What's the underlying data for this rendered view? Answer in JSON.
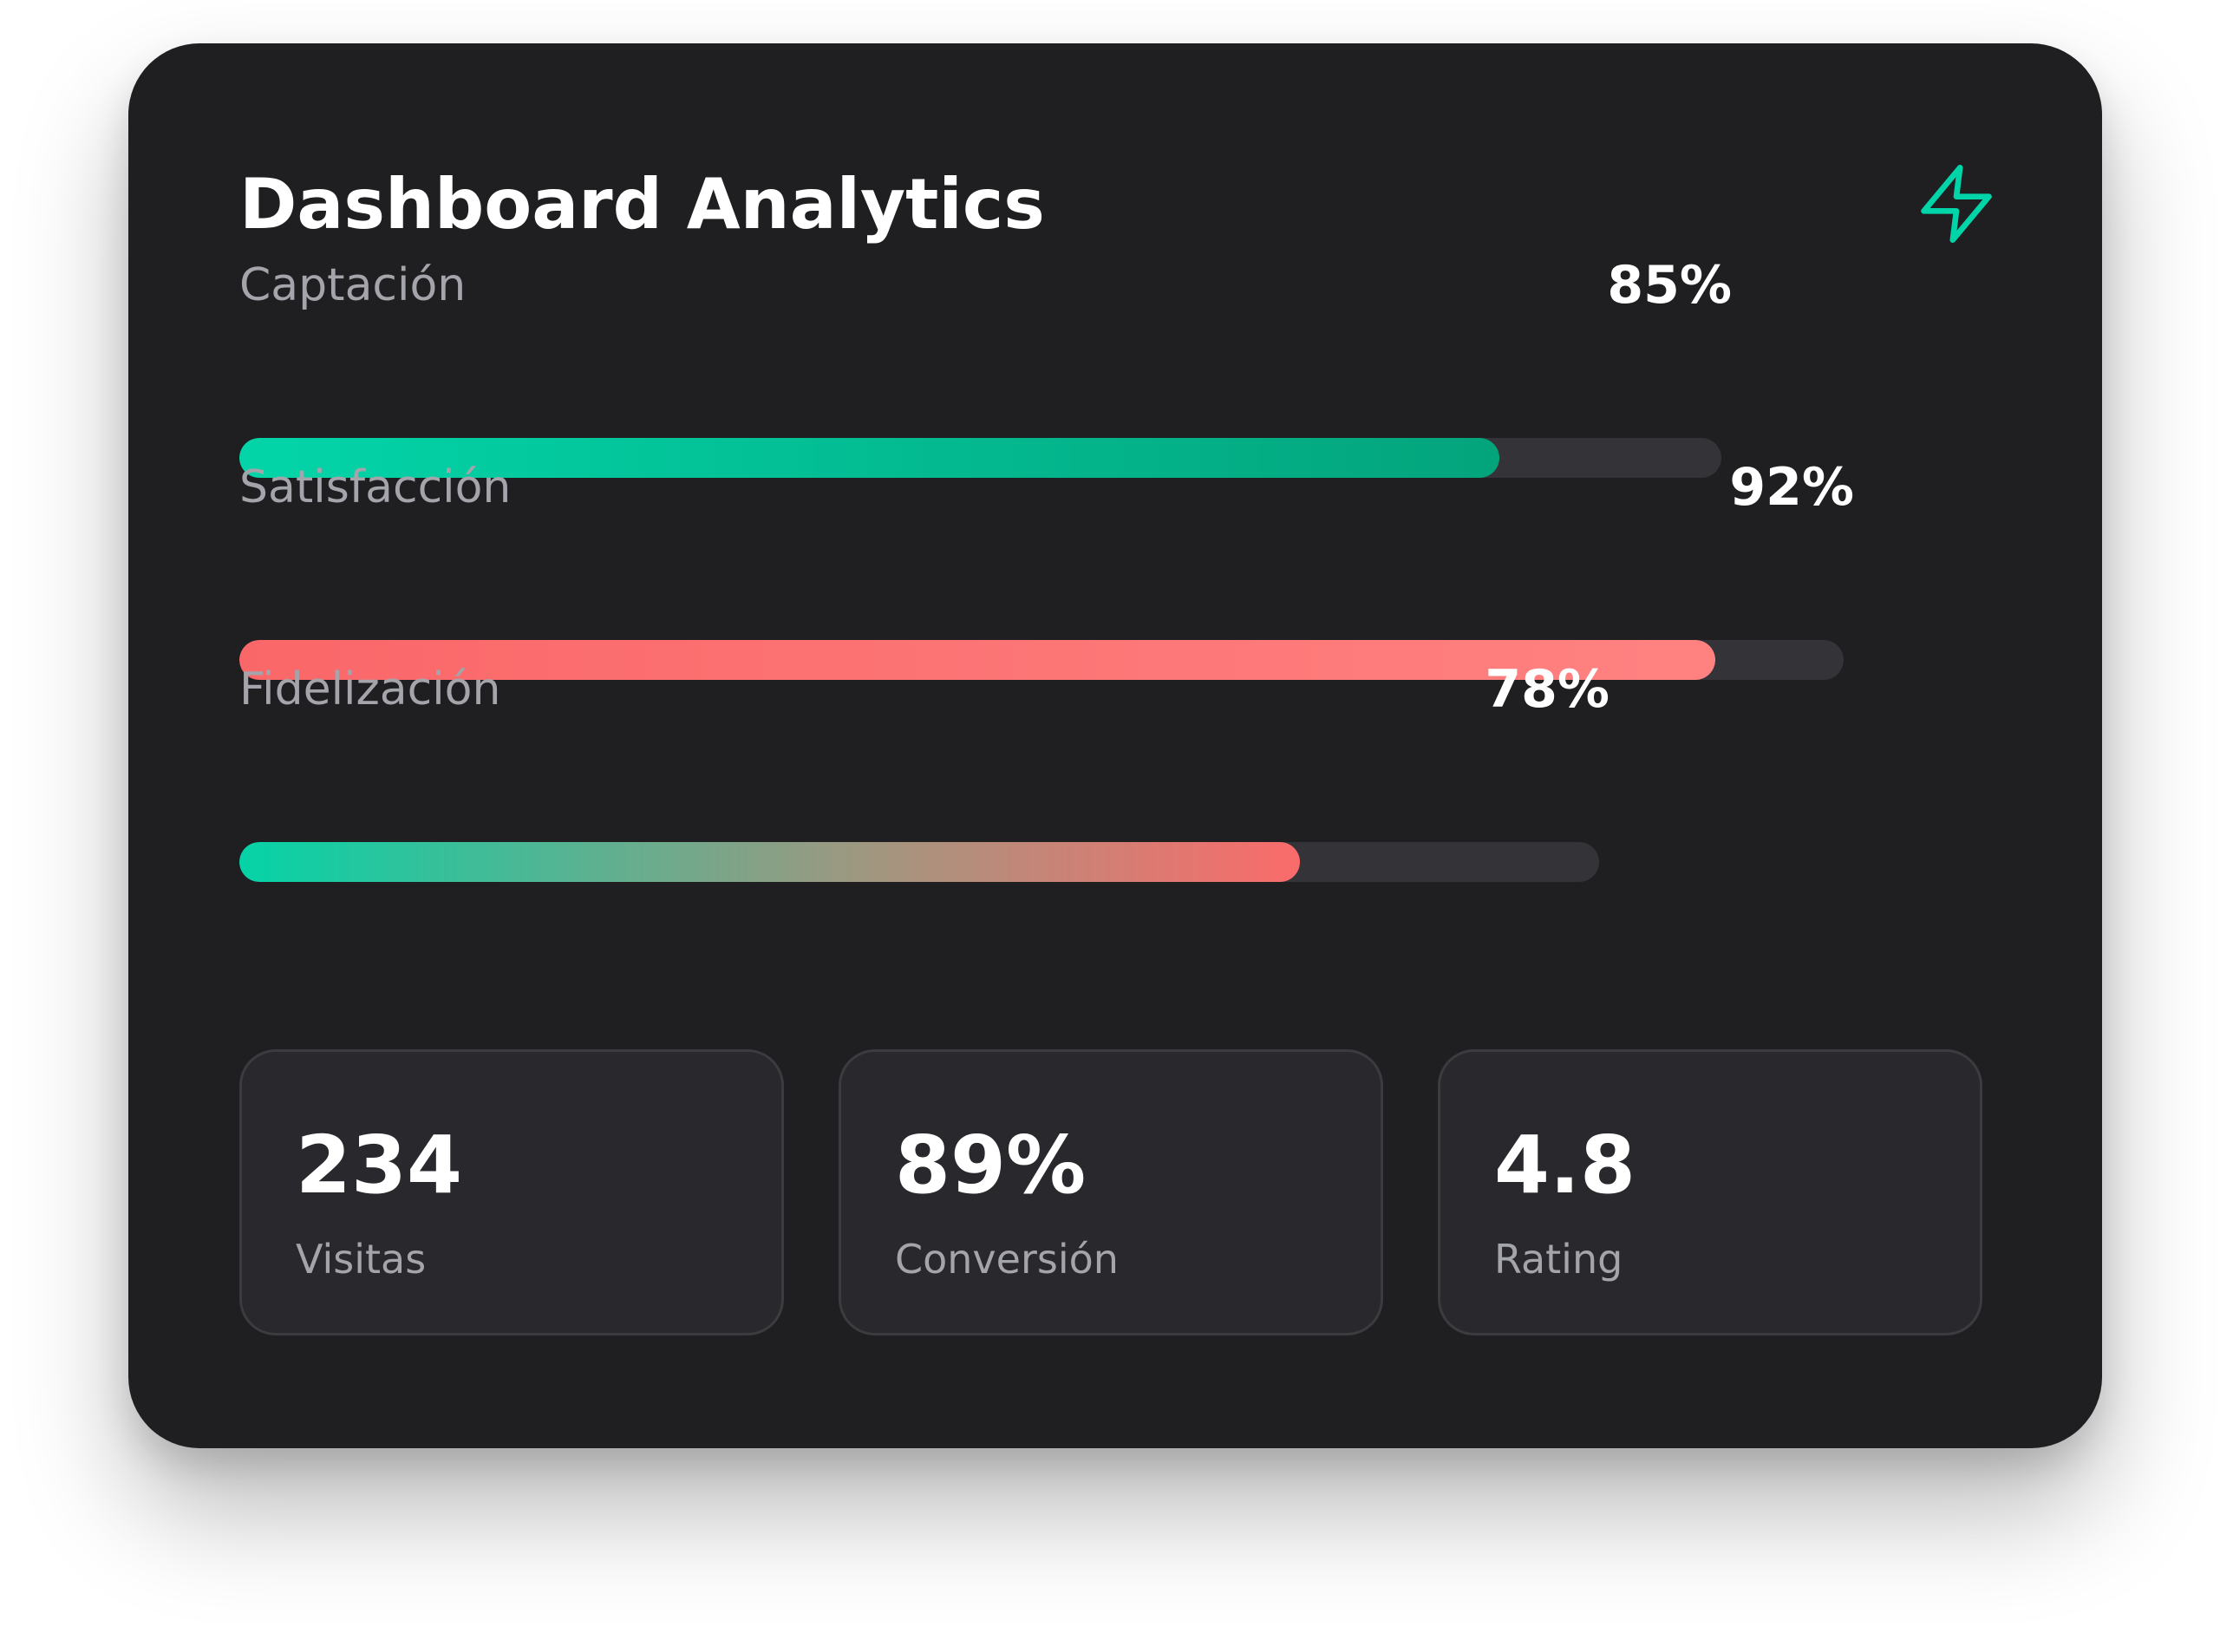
{
  "card": {
    "title": "Dashboard Analytics",
    "icon": "lightning-bolt-icon",
    "accent_color": "#00d4a8"
  },
  "metrics": [
    {
      "label": "Captación",
      "value_text": "85%",
      "track_fraction": 0.85,
      "fill_fraction": 0.85,
      "colors": [
        "#03d5a9",
        "#03a47c"
      ]
    },
    {
      "label": "Satisfacción",
      "value_text": "92%",
      "track_fraction": 0.92,
      "fill_fraction": 0.92,
      "colors": [
        "#fa6769",
        "#ff8281"
      ]
    },
    {
      "label": "Fidelización",
      "value_text": "78%",
      "track_fraction": 0.78,
      "fill_fraction": 0.78,
      "colors": [
        "#05d3a7",
        "#fb6b6b"
      ]
    }
  ],
  "stats": [
    {
      "value": "234",
      "label": "Visitas"
    },
    {
      "value": "89%",
      "label": "Conversión"
    },
    {
      "value": "4.8",
      "label": "Rating"
    }
  ]
}
